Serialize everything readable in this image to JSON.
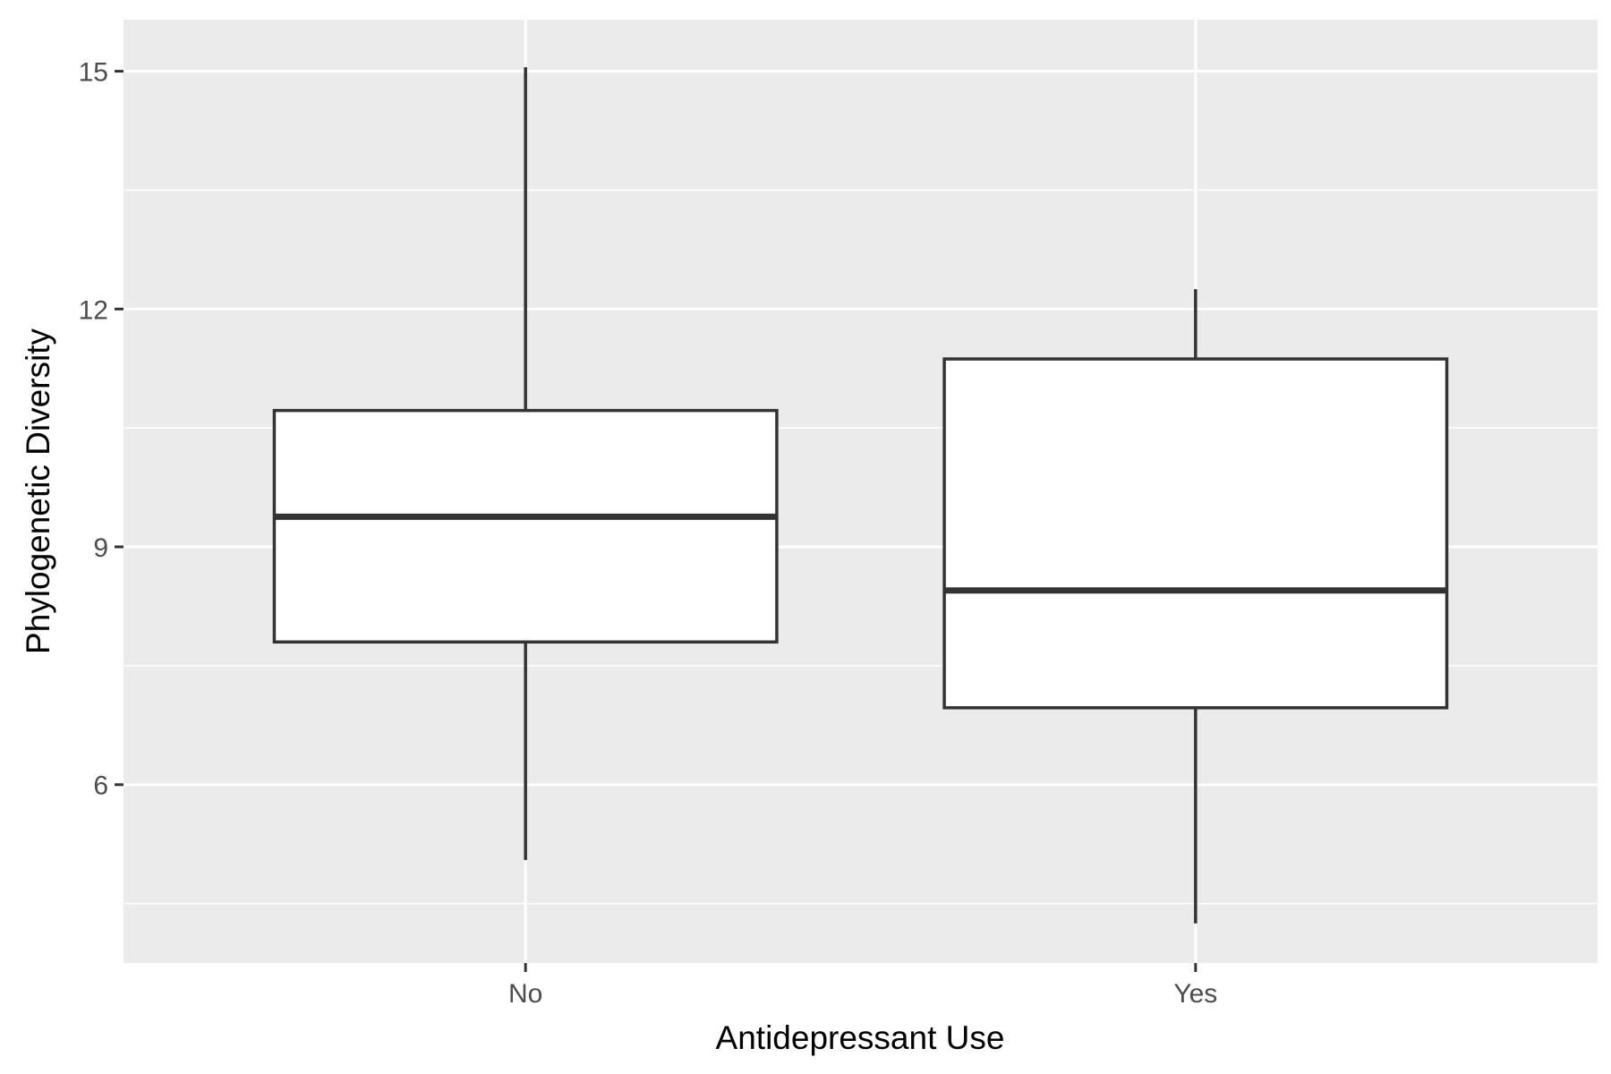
{
  "chart_data": {
    "type": "box",
    "title": "",
    "xlabel": "Antidepressant Use",
    "ylabel": "Phylogenetic Diversity",
    "categories": [
      "No",
      "Yes"
    ],
    "boxes": [
      {
        "category": "No",
        "whisker_low": 5.05,
        "q1": 7.8,
        "median": 9.38,
        "q3": 10.72,
        "whisker_high": 15.05
      },
      {
        "category": "Yes",
        "whisker_low": 4.25,
        "q1": 6.97,
        "median": 8.45,
        "q3": 11.37,
        "whisker_high": 12.25
      }
    ],
    "ylim": [
      3.75,
      15.65
    ],
    "yticks": [
      6,
      9,
      12,
      15
    ],
    "yticks_minor": [
      4.5,
      7.5,
      10.5,
      13.5
    ],
    "grid": true,
    "legend": "none",
    "colors": {
      "panel_background": "#ebebeb",
      "grid": "#ffffff",
      "box_fill": "#ffffff",
      "box_stroke": "#333333",
      "tick": "#333333"
    }
  }
}
